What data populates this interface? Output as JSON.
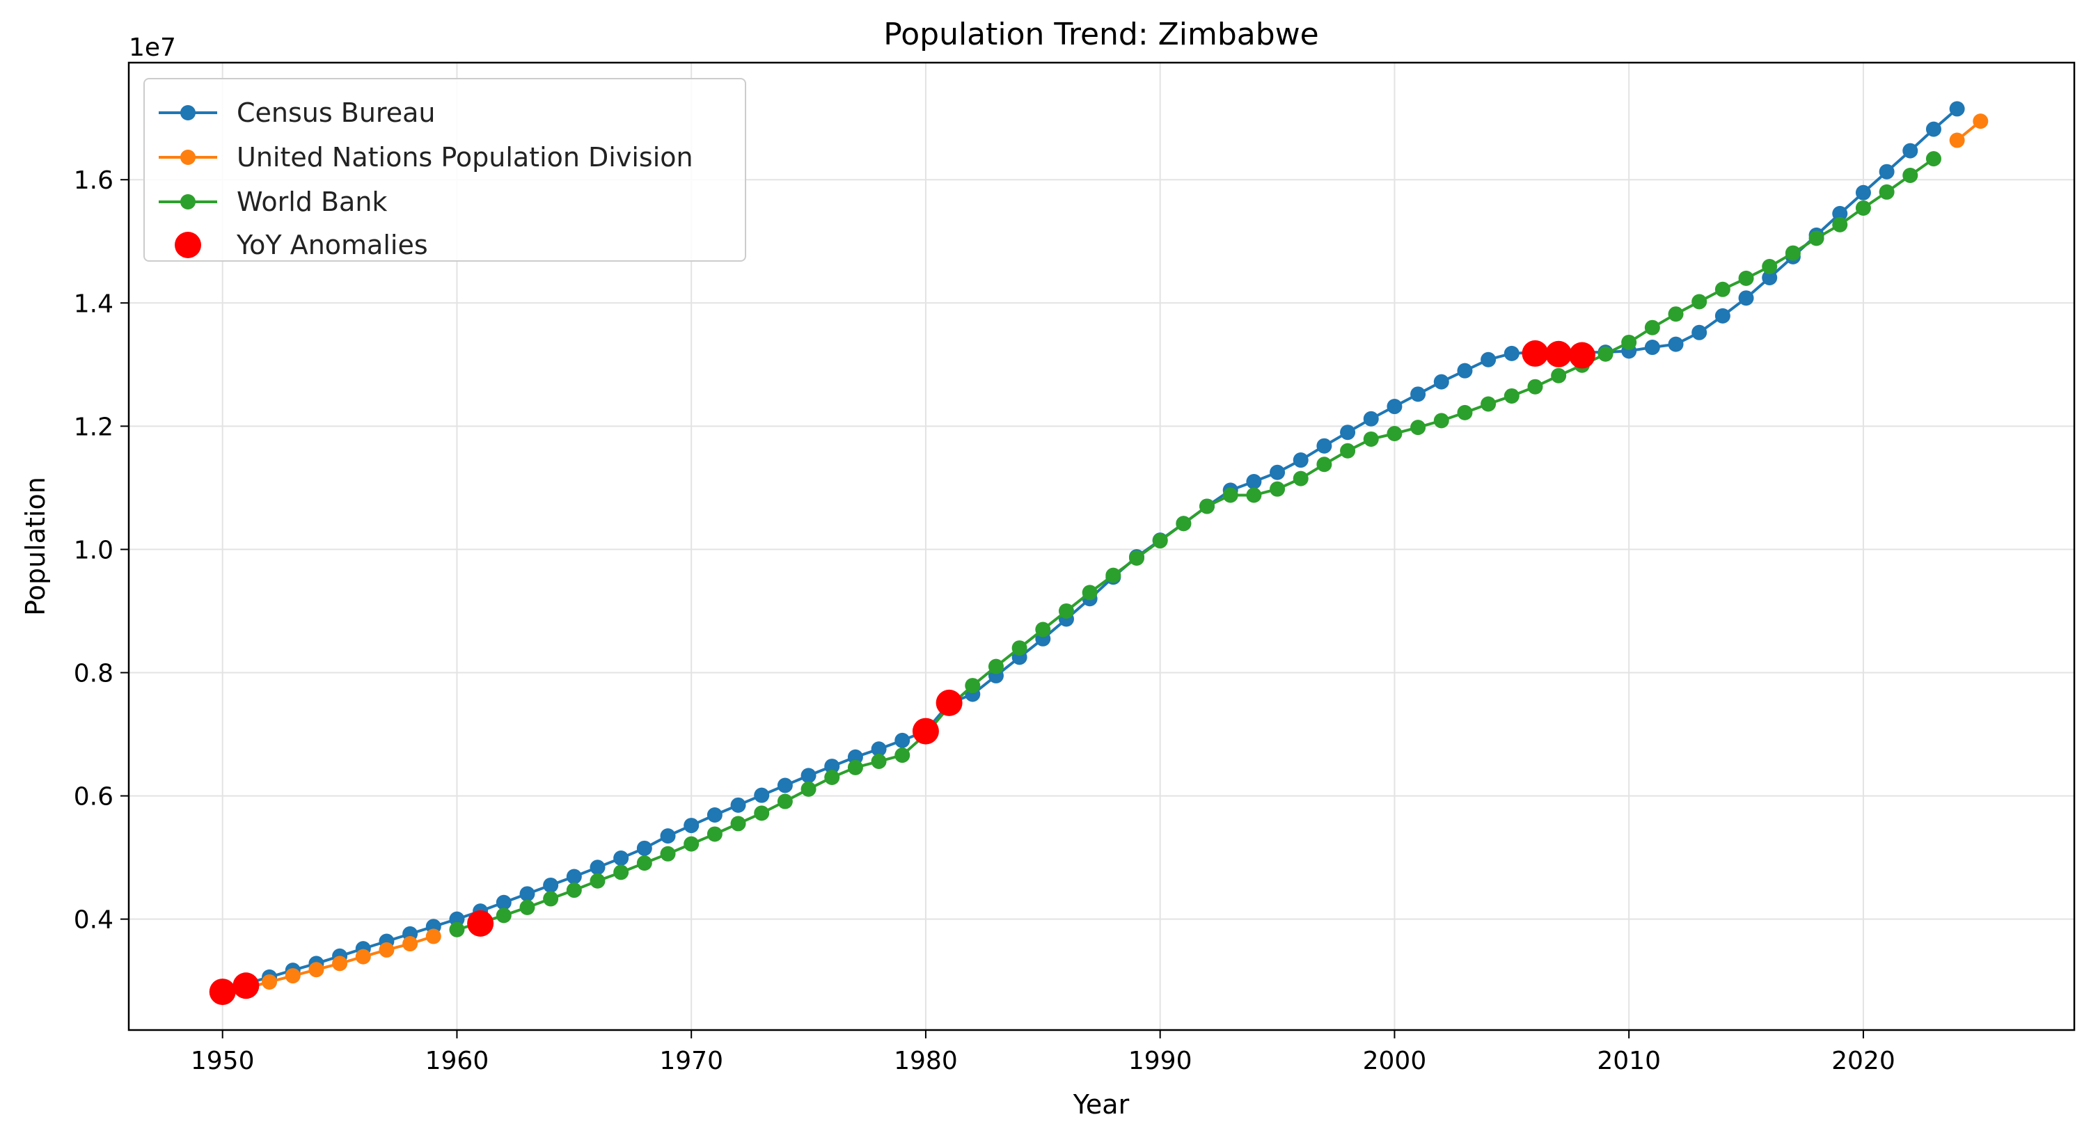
{
  "chart_data": {
    "type": "line",
    "title": "Population Trend: Zimbabwe",
    "xlabel": "Year",
    "ylabel": "Population",
    "y_offset_label": "1e7",
    "xlim": [
      1946,
      2029
    ],
    "ylim": [
      2200000,
      17900000
    ],
    "x_ticks": [
      1950,
      1960,
      1970,
      1980,
      1990,
      2000,
      2010,
      2020
    ],
    "y_ticks": [
      4000000,
      6000000,
      8000000,
      10000000,
      12000000,
      14000000,
      16000000
    ],
    "y_tick_labels": [
      "0.4",
      "0.6",
      "0.8",
      "1.0",
      "1.2",
      "1.4",
      "1.6"
    ],
    "grid": true,
    "legend_position": "top-left",
    "series": [
      {
        "name": "Census Bureau",
        "color": "#1f77b4",
        "x": [
          1950,
          1951,
          1952,
          1953,
          1954,
          1955,
          1956,
          1957,
          1958,
          1959,
          1960,
          1961,
          1962,
          1963,
          1964,
          1965,
          1966,
          1967,
          1968,
          1969,
          1970,
          1971,
          1972,
          1973,
          1974,
          1975,
          1976,
          1977,
          1978,
          1979,
          1980,
          1981,
          1982,
          1983,
          1984,
          1985,
          1986,
          1987,
          1988,
          1989,
          1990,
          1991,
          1992,
          1993,
          1994,
          1995,
          1996,
          1997,
          1998,
          1999,
          2000,
          2001,
          2002,
          2003,
          2004,
          2005,
          2006,
          2007,
          2008,
          2009,
          2010,
          2011,
          2012,
          2013,
          2014,
          2015,
          2016,
          2017,
          2018,
          2019,
          2020,
          2021,
          2022,
          2023,
          2024
        ],
        "y": [
          2850000,
          2950000,
          3060000,
          3170000,
          3280000,
          3400000,
          3520000,
          3640000,
          3760000,
          3880000,
          4000000,
          4130000,
          4270000,
          4410000,
          4550000,
          4690000,
          4840000,
          4990000,
          5150000,
          5350000,
          5520000,
          5690000,
          5850000,
          6010000,
          6170000,
          6330000,
          6480000,
          6630000,
          6760000,
          6900000,
          7050000,
          7500000,
          7650000,
          7950000,
          8250000,
          8550000,
          8870000,
          9200000,
          9550000,
          9880000,
          10150000,
          10420000,
          10700000,
          10960000,
          11100000,
          11250000,
          11450000,
          11680000,
          11900000,
          12120000,
          12320000,
          12520000,
          12720000,
          12900000,
          13080000,
          13180000,
          13200000,
          13200000,
          13200000,
          13200000,
          13220000,
          13280000,
          13330000,
          13520000,
          13790000,
          14080000,
          14410000,
          14750000,
          15100000,
          15450000,
          15790000,
          16130000,
          16470000,
          16820000,
          17150000
        ]
      },
      {
        "name": "United Nations Population Division",
        "color": "#ff7f0e",
        "x": [
          1950,
          1951,
          1952,
          1953,
          1954,
          1955,
          1956,
          1957,
          1958,
          1959,
          2024,
          2025
        ],
        "y": [
          2800000,
          2880000,
          2980000,
          3080000,
          3180000,
          3280000,
          3390000,
          3500000,
          3600000,
          3720000,
          16640000,
          16950000
        ]
      },
      {
        "name": "World Bank",
        "color": "#2ca02c",
        "x": [
          1960,
          1961,
          1962,
          1963,
          1964,
          1965,
          1966,
          1967,
          1968,
          1969,
          1970,
          1971,
          1972,
          1973,
          1974,
          1975,
          1976,
          1977,
          1978,
          1979,
          1980,
          1981,
          1982,
          1983,
          1984,
          1985,
          1986,
          1987,
          1988,
          1989,
          1990,
          1991,
          1992,
          1993,
          1994,
          1995,
          1996,
          1997,
          1998,
          1999,
          2000,
          2001,
          2002,
          2003,
          2004,
          2005,
          2006,
          2007,
          2008,
          2009,
          2010,
          2011,
          2012,
          2013,
          2014,
          2015,
          2016,
          2017,
          2018,
          2019,
          2020,
          2021,
          2022,
          2023
        ],
        "y": [
          3830000,
          3940000,
          4060000,
          4190000,
          4330000,
          4470000,
          4620000,
          4760000,
          4910000,
          5060000,
          5220000,
          5380000,
          5550000,
          5720000,
          5910000,
          6110000,
          6300000,
          6460000,
          6560000,
          6660000,
          7000000,
          7450000,
          7790000,
          8100000,
          8400000,
          8700000,
          9000000,
          9300000,
          9580000,
          9860000,
          10140000,
          10420000,
          10700000,
          10880000,
          10880000,
          10980000,
          11150000,
          11380000,
          11600000,
          11790000,
          11880000,
          11980000,
          12090000,
          12220000,
          12360000,
          12490000,
          12640000,
          12820000,
          12990000,
          13170000,
          13360000,
          13600000,
          13820000,
          14020000,
          14220000,
          14400000,
          14590000,
          14810000,
          15050000,
          15270000,
          15540000,
          15800000,
          16070000,
          16340000
        ]
      }
    ],
    "anomalies": {
      "name": "YoY Anomalies",
      "color": "#ff0000",
      "x": [
        1950,
        1951,
        1961,
        1980,
        1981,
        2006,
        2007,
        2008
      ],
      "y": [
        2820000,
        2920000,
        3930000,
        7050000,
        7510000,
        13180000,
        13170000,
        13150000
      ]
    }
  }
}
